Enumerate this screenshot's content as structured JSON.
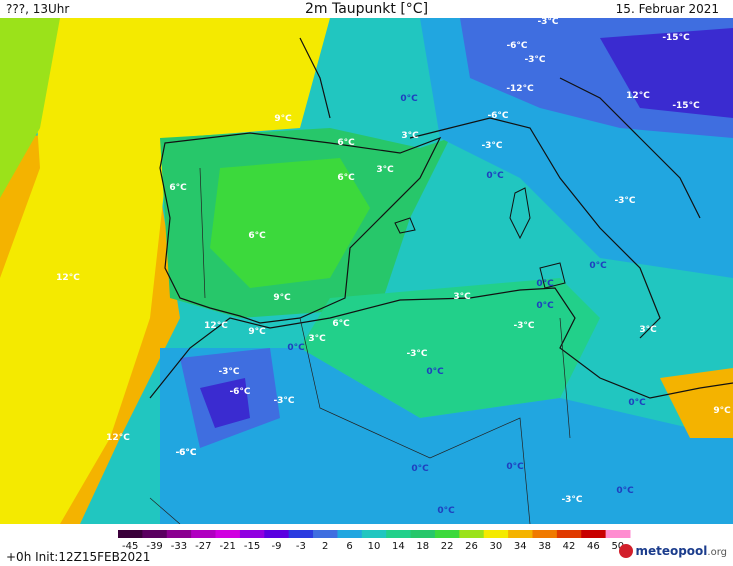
{
  "header": {
    "left": "???, 13Uhr",
    "title": "2m Taupunkt [°C]",
    "date": "15. Februar 2021"
  },
  "footer": {
    "init": "+0h Init:12Z15FEB2021",
    "logo_name": "meteopool",
    "logo_suffix": ".org"
  },
  "colors": {
    "very_cold": "#3a2bd0",
    "cold": "#3f6ee0",
    "cool": "#21b6e0",
    "mild_cool": "#22d0b0",
    "neutral": "#27c76a",
    "mild": "#3cd93c",
    "warm": "#9be21a",
    "warmer": "#f4ea00",
    "warmest": "#f4b300"
  },
  "colorbar": {
    "ticks": [
      "-45",
      "-39",
      "-33",
      "-27",
      "-21",
      "-15",
      "-9",
      "-3",
      "2",
      "6",
      "10",
      "14",
      "18",
      "22",
      "26",
      "30",
      "34",
      "38",
      "42",
      "46",
      "50"
    ],
    "colors": [
      "#3a003a",
      "#5a0060",
      "#8a0090",
      "#b000c0",
      "#d000e0",
      "#9000e0",
      "#5a00e0",
      "#2b3be0",
      "#3f6ee0",
      "#21a6e0",
      "#21c6c0",
      "#22d08a",
      "#27c76a",
      "#3cd93c",
      "#9be21a",
      "#f4ea00",
      "#f4b300",
      "#f07a00",
      "#e03a00",
      "#c80000",
      "#ff8cd0"
    ]
  },
  "labels": [
    {
      "t": "9°C",
      "c": "w"
    },
    {
      "t": "6°C",
      "c": "w"
    },
    {
      "t": "3°C",
      "c": "w"
    },
    {
      "t": "6°C",
      "c": "w"
    },
    {
      "t": "3°C",
      "c": "w"
    },
    {
      "t": "6°C",
      "c": "w"
    },
    {
      "t": "6°C",
      "c": "w"
    },
    {
      "t": "12°C",
      "c": "w"
    },
    {
      "t": "9°C",
      "c": "w"
    },
    {
      "t": "12°C",
      "c": "w"
    },
    {
      "t": "9°C",
      "c": "w"
    },
    {
      "t": "6°C",
      "c": "w"
    },
    {
      "t": "3°C",
      "c": "w"
    },
    {
      "t": "3°C",
      "c": "w"
    },
    {
      "t": "12°C",
      "c": "w"
    },
    {
      "t": "3°C",
      "c": "w"
    },
    {
      "t": "9°C",
      "c": "w"
    },
    {
      "t": "-3°C",
      "c": "w"
    },
    {
      "t": "-6°C",
      "c": "w"
    },
    {
      "t": "-3°C",
      "c": "w"
    },
    {
      "t": "-12°C",
      "c": "w"
    },
    {
      "t": "12°C",
      "c": "w"
    },
    {
      "t": "-6°C",
      "c": "w"
    },
    {
      "t": "-15°C",
      "c": "w"
    },
    {
      "t": "-15°C",
      "c": "w"
    },
    {
      "t": "-6°C",
      "c": "w"
    },
    {
      "t": "-3°C",
      "c": "w"
    },
    {
      "t": "-3°C",
      "c": "w"
    },
    {
      "t": "-3°C",
      "c": "w"
    },
    {
      "t": "-3°C",
      "c": "w"
    },
    {
      "t": "-3°C",
      "c": "w"
    },
    {
      "t": "-6°C",
      "c": "w"
    },
    {
      "t": "-3°C",
      "c": "w"
    },
    {
      "t": "-6°C",
      "c": "w"
    },
    {
      "t": "-3°C",
      "c": "w"
    },
    {
      "t": "0°C",
      "c": "b"
    },
    {
      "t": "0°C",
      "c": "b"
    },
    {
      "t": "0°C",
      "c": "b"
    },
    {
      "t": "0°C",
      "c": "b"
    },
    {
      "t": "0°C",
      "c": "b"
    },
    {
      "t": "0°C",
      "c": "b"
    },
    {
      "t": "0°C",
      "c": "b"
    },
    {
      "t": "0°C",
      "c": "b"
    },
    {
      "t": "0°C",
      "c": "b"
    },
    {
      "t": "0°C",
      "c": "b"
    },
    {
      "t": "0°C",
      "c": "b"
    },
    {
      "t": "0°C",
      "c": "b"
    }
  ]
}
